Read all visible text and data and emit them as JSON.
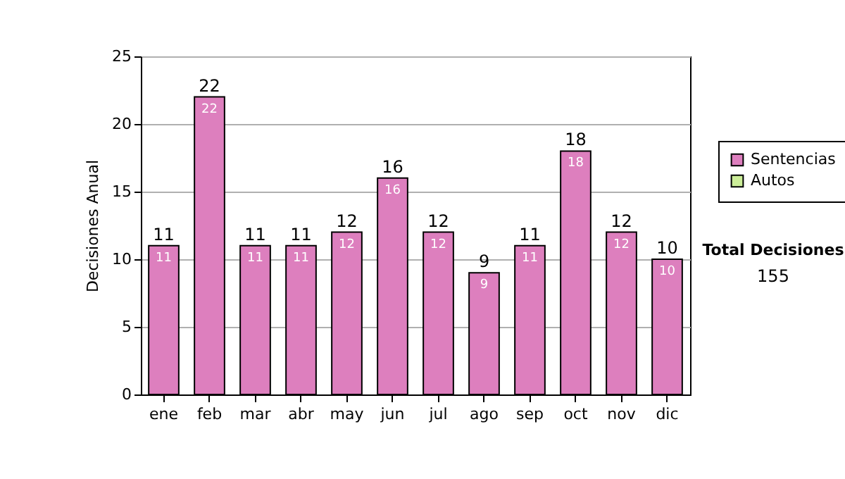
{
  "chart_data": {
    "type": "bar",
    "stacked": true,
    "categories": [
      "ene",
      "feb",
      "mar",
      "abr",
      "may",
      "jun",
      "jul",
      "ago",
      "sep",
      "oct",
      "nov",
      "dic"
    ],
    "series": [
      {
        "name": "Sentencias",
        "color": "#dd7fbe",
        "values": [
          11,
          22,
          11,
          11,
          12,
          16,
          12,
          9,
          11,
          18,
          12,
          10
        ],
        "value_labels": [
          "11",
          "22",
          "11",
          "11",
          "12",
          "16",
          "12",
          "9",
          "11",
          "18",
          "12",
          "10"
        ]
      },
      {
        "name": "Autos",
        "color": "#ccee99",
        "values": [
          0,
          0,
          0,
          0,
          0,
          0,
          0,
          0,
          0,
          0,
          0,
          0
        ],
        "value_labels": [
          null,
          null,
          null,
          null,
          null,
          null,
          null,
          null,
          null,
          null,
          null,
          null
        ]
      }
    ],
    "ylabel": "Decisiones Anual",
    "ylim": [
      0,
      25
    ],
    "yticks": [
      0,
      5,
      10,
      15,
      20,
      25
    ],
    "grid": "y",
    "legend": "right",
    "totals": [
      "11",
      "22",
      "11",
      "11",
      "12",
      "16",
      "12",
      "9",
      "11",
      "18",
      "12",
      "10"
    ],
    "annotations": [
      "Total Decisiones",
      "155"
    ]
  }
}
